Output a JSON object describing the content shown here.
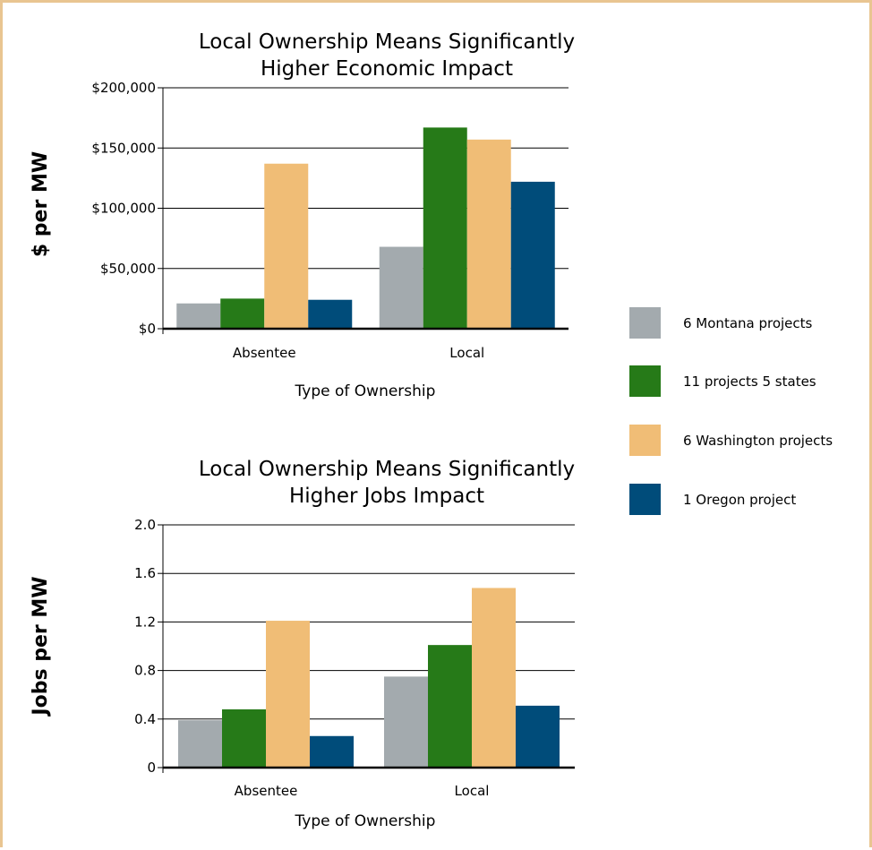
{
  "colors": {
    "series": [
      "#a3aaae",
      "#267a18",
      "#f0bd76",
      "#004c7a"
    ],
    "border": "#e9c591"
  },
  "legend": {
    "items": [
      "6 Montana projects",
      "11 projects 5 states",
      "6 Washington projects",
      "1 Oregon project"
    ]
  },
  "chart_data": [
    {
      "type": "bar",
      "title": [
        "Local Ownership Means Significantly",
        "Higher Economic Impact"
      ],
      "xlabel": "Type of Ownership",
      "ylabel": "$ per MW",
      "categories": [
        "Absentee",
        "Local"
      ],
      "ylim": [
        0,
        200000
      ],
      "yticks": [
        0,
        50000,
        100000,
        150000,
        200000
      ],
      "ytick_labels": [
        "$0",
        "$50,000",
        "$100,000",
        "$150,000",
        "$200,000"
      ],
      "grid": true,
      "series": [
        {
          "name": "6 Montana projects",
          "values": [
            21000,
            68000
          ]
        },
        {
          "name": "11 projects 5 states",
          "values": [
            25000,
            167000
          ]
        },
        {
          "name": "6 Washington projects",
          "values": [
            137000,
            157000
          ]
        },
        {
          "name": "1 Oregon project",
          "values": [
            24000,
            122000
          ]
        }
      ]
    },
    {
      "type": "bar",
      "title": [
        "Local Ownership Means Significantly",
        "Higher Jobs Impact"
      ],
      "xlabel": "Type of Ownership",
      "ylabel": "Jobs per MW",
      "categories": [
        "Absentee",
        "Local"
      ],
      "ylim": [
        0,
        2.0
      ],
      "yticks": [
        0,
        0.4,
        0.8,
        1.2,
        1.6,
        2.0
      ],
      "ytick_labels": [
        "0",
        "0.4",
        "0.8",
        "1.2",
        "1.6",
        "2.0"
      ],
      "grid": true,
      "series": [
        {
          "name": "6 Montana projects",
          "values": [
            0.39,
            0.75
          ]
        },
        {
          "name": "11 projects 5 states",
          "values": [
            0.48,
            1.01
          ]
        },
        {
          "name": "6 Washington projects",
          "values": [
            1.21,
            1.48
          ]
        },
        {
          "name": "1 Oregon project",
          "values": [
            0.26,
            0.51
          ]
        }
      ]
    }
  ]
}
